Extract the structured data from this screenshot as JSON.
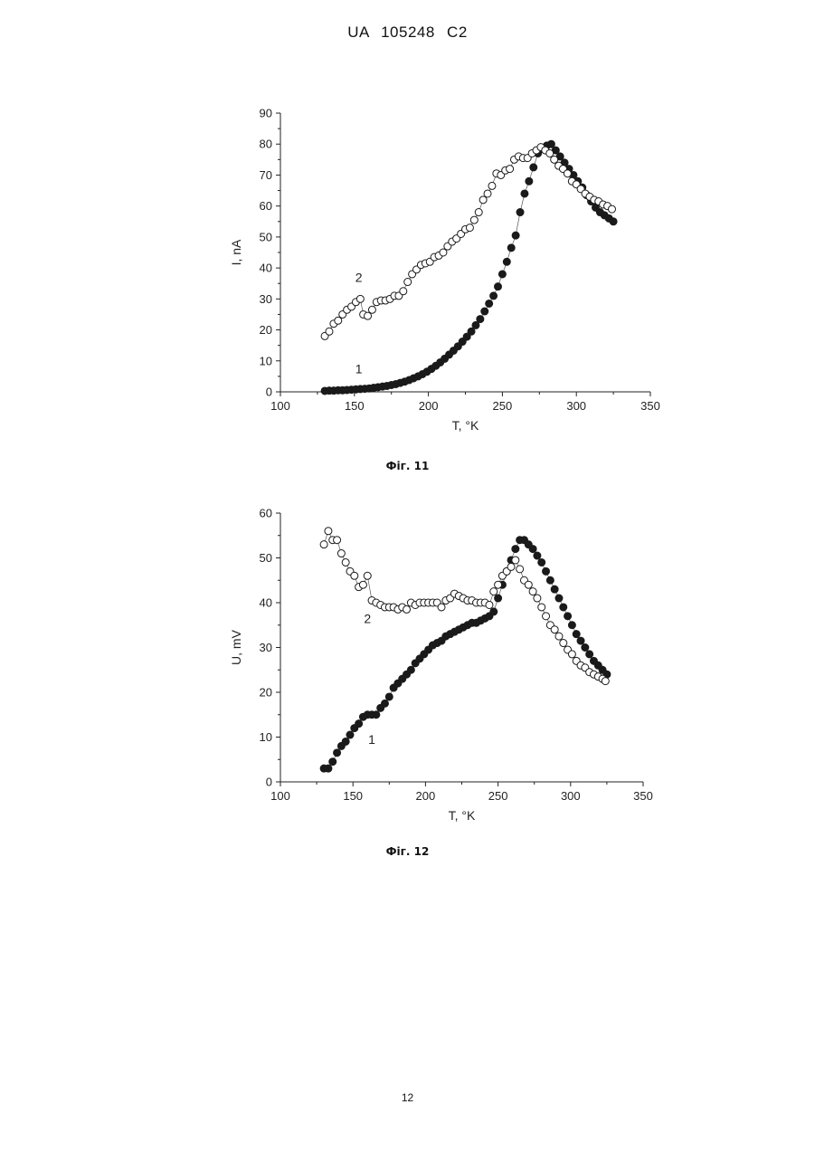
{
  "header": "UA   105248   C2",
  "page_number": "12",
  "chart_data": [
    {
      "type": "scatter",
      "caption": "Фіг. 11",
      "xlabel": "T, °K",
      "ylabel": "I, nA",
      "xlim": [
        100,
        350
      ],
      "ylim": [
        0,
        90
      ],
      "xticks": [
        100,
        150,
        200,
        250,
        300,
        350
      ],
      "yticks": [
        0,
        10,
        20,
        30,
        40,
        50,
        60,
        70,
        80,
        90
      ],
      "grid": false,
      "series": [
        {
          "label": "1",
          "marker": "filled",
          "connected": true,
          "label_pos": [
            153,
            6
          ],
          "points": [
            [
              130,
              0.3
            ],
            [
              133,
              0.4
            ],
            [
              136,
              0.4
            ],
            [
              139,
              0.5
            ],
            [
              142,
              0.5
            ],
            [
              145,
              0.6
            ],
            [
              148,
              0.7
            ],
            [
              151,
              0.8
            ],
            [
              154,
              0.9
            ],
            [
              157,
              1.0
            ],
            [
              160,
              1.1
            ],
            [
              163,
              1.3
            ],
            [
              166,
              1.5
            ],
            [
              169,
              1.7
            ],
            [
              172,
              1.9
            ],
            [
              175,
              2.2
            ],
            [
              178,
              2.5
            ],
            [
              181,
              2.9
            ],
            [
              184,
              3.3
            ],
            [
              187,
              3.8
            ],
            [
              190,
              4.4
            ],
            [
              193,
              5.0
            ],
            [
              196,
              5.7
            ],
            [
              199,
              6.5
            ],
            [
              202,
              7.4
            ],
            [
              205,
              8.4
            ],
            [
              208,
              9.5
            ],
            [
              211,
              10.7
            ],
            [
              214,
              12.0
            ],
            [
              217,
              13.3
            ],
            [
              220,
              14.7
            ],
            [
              223,
              16.2
            ],
            [
              226,
              17.8
            ],
            [
              229,
              19.5
            ],
            [
              232,
              21.5
            ],
            [
              235,
              23.5
            ],
            [
              238,
              26.0
            ],
            [
              241,
              28.5
            ],
            [
              244,
              31.0
            ],
            [
              247,
              34.0
            ],
            [
              250,
              38.0
            ],
            [
              253,
              42.0
            ],
            [
              256,
              46.5
            ],
            [
              259,
              50.5
            ],
            [
              262,
              58.0
            ],
            [
              265,
              64.0
            ],
            [
              268,
              68.0
            ],
            [
              271,
              72.5
            ],
            [
              274,
              77.0
            ],
            [
              277,
              78.5
            ],
            [
              280,
              79.5
            ],
            [
              283,
              80.0
            ],
            [
              286,
              78.0
            ],
            [
              289,
              76.0
            ],
            [
              292,
              74.0
            ],
            [
              295,
              72.0
            ],
            [
              298,
              70.0
            ],
            [
              301,
              68.0
            ],
            [
              304,
              66.0
            ],
            [
              307,
              63.5
            ],
            [
              310,
              61.5
            ],
            [
              313,
              59.5
            ],
            [
              316,
              58.0
            ],
            [
              319,
              57.0
            ],
            [
              322,
              56.0
            ],
            [
              325,
              55.0
            ]
          ]
        },
        {
          "label": "2",
          "marker": "open",
          "connected": true,
          "label_pos": [
            153,
            35.5
          ],
          "points": [
            [
              130,
              18
            ],
            [
              133,
              19.5
            ],
            [
              136,
              22
            ],
            [
              139,
              23
            ],
            [
              142,
              25
            ],
            [
              145,
              26.5
            ],
            [
              148,
              27.5
            ],
            [
              151,
              29
            ],
            [
              154,
              30
            ],
            [
              156,
              25
            ],
            [
              159,
              24.5
            ],
            [
              162,
              26.5
            ],
            [
              165,
              29
            ],
            [
              168,
              29.5
            ],
            [
              171,
              29.5
            ],
            [
              174,
              30
            ],
            [
              177,
              31
            ],
            [
              180,
              31
            ],
            [
              183,
              32.5
            ],
            [
              186,
              35.5
            ],
            [
              189,
              38
            ],
            [
              192,
              39.5
            ],
            [
              195,
              41
            ],
            [
              198,
              41.5
            ],
            [
              201,
              42
            ],
            [
              204,
              43.5
            ],
            [
              207,
              44
            ],
            [
              210,
              45
            ],
            [
              213,
              47
            ],
            [
              216,
              48.5
            ],
            [
              219,
              49.5
            ],
            [
              222,
              51
            ],
            [
              225,
              52.5
            ],
            [
              228,
              53
            ],
            [
              231,
              55.5
            ],
            [
              234,
              58
            ],
            [
              237,
              62
            ],
            [
              240,
              64
            ],
            [
              243,
              66.5
            ],
            [
              246,
              70.5
            ],
            [
              249,
              70
            ],
            [
              252,
              71.5
            ],
            [
              255,
              72
            ],
            [
              258,
              75
            ],
            [
              261,
              76
            ],
            [
              264,
              75.5
            ],
            [
              267,
              75.5
            ],
            [
              270,
              77
            ],
            [
              273,
              78
            ],
            [
              276,
              79
            ],
            [
              279,
              78
            ],
            [
              282,
              77
            ],
            [
              285,
              75
            ],
            [
              288,
              73
            ],
            [
              291,
              72
            ],
            [
              294,
              70.5
            ],
            [
              297,
              68
            ],
            [
              300,
              67
            ],
            [
              303,
              65.5
            ],
            [
              306,
              64
            ],
            [
              309,
              63
            ],
            [
              312,
              62
            ],
            [
              315,
              61.5
            ],
            [
              318,
              60.5
            ],
            [
              321,
              60
            ],
            [
              324,
              59
            ]
          ]
        }
      ]
    },
    {
      "type": "scatter",
      "caption": "Фіг. 12",
      "xlabel": "T, °K",
      "ylabel": "U, mV",
      "xlim": [
        100,
        350
      ],
      "ylim": [
        0,
        60
      ],
      "xticks": [
        100,
        150,
        200,
        250,
        300,
        350
      ],
      "yticks": [
        0,
        10,
        20,
        30,
        40,
        50,
        60
      ],
      "grid": false,
      "series": [
        {
          "label": "1",
          "marker": "filled",
          "connected": true,
          "label_pos": [
            163,
            8.5
          ],
          "points": [
            [
              130,
              3
            ],
            [
              133,
              3
            ],
            [
              136,
              4.5
            ],
            [
              139,
              6.5
            ],
            [
              142,
              8
            ],
            [
              145,
              9
            ],
            [
              148,
              10.5
            ],
            [
              151,
              12
            ],
            [
              154,
              13
            ],
            [
              157,
              14.5
            ],
            [
              160,
              15
            ],
            [
              163,
              15
            ],
            [
              166,
              15
            ],
            [
              169,
              16.5
            ],
            [
              172,
              17.5
            ],
            [
              175,
              19
            ],
            [
              178,
              21
            ],
            [
              181,
              22
            ],
            [
              184,
              23
            ],
            [
              187,
              24
            ],
            [
              190,
              25
            ],
            [
              193,
              26.5
            ],
            [
              196,
              27.5
            ],
            [
              199,
              28.5
            ],
            [
              202,
              29.5
            ],
            [
              205,
              30.5
            ],
            [
              208,
              31
            ],
            [
              211,
              31.5
            ],
            [
              214,
              32.5
            ],
            [
              217,
              33
            ],
            [
              220,
              33.5
            ],
            [
              223,
              34
            ],
            [
              226,
              34.5
            ],
            [
              229,
              35
            ],
            [
              232,
              35.5
            ],
            [
              235,
              35.5
            ],
            [
              238,
              36
            ],
            [
              241,
              36.5
            ],
            [
              244,
              37
            ],
            [
              247,
              38
            ],
            [
              250,
              41
            ],
            [
              253,
              44
            ],
            [
              256,
              47
            ],
            [
              259,
              49.5
            ],
            [
              262,
              52
            ],
            [
              265,
              54
            ],
            [
              268,
              54
            ],
            [
              271,
              53
            ],
            [
              274,
              52
            ],
            [
              277,
              50.5
            ],
            [
              280,
              49
            ],
            [
              283,
              47
            ],
            [
              286,
              45
            ],
            [
              289,
              43
            ],
            [
              292,
              41
            ],
            [
              295,
              39
            ],
            [
              298,
              37
            ],
            [
              301,
              35
            ],
            [
              304,
              33
            ],
            [
              307,
              31.5
            ],
            [
              310,
              30
            ],
            [
              313,
              28.5
            ],
            [
              316,
              27
            ],
            [
              319,
              26
            ],
            [
              322,
              25
            ],
            [
              325,
              24
            ]
          ]
        },
        {
          "label": "2",
          "marker": "open",
          "connected": true,
          "label_pos": [
            160,
            35.5
          ],
          "points": [
            [
              130,
              53
            ],
            [
              133,
              56
            ],
            [
              136,
              54
            ],
            [
              139,
              54
            ],
            [
              142,
              51
            ],
            [
              145,
              49
            ],
            [
              148,
              47
            ],
            [
              151,
              46
            ],
            [
              154,
              43.5
            ],
            [
              157,
              44
            ],
            [
              160,
              46
            ],
            [
              163,
              40.5
            ],
            [
              166,
              40
            ],
            [
              169,
              39.5
            ],
            [
              172,
              39
            ],
            [
              175,
              39
            ],
            [
              178,
              39
            ],
            [
              181,
              38.5
            ],
            [
              184,
              39
            ],
            [
              187,
              38.5
            ],
            [
              190,
              40
            ],
            [
              193,
              39.5
            ],
            [
              196,
              40
            ],
            [
              199,
              40
            ],
            [
              202,
              40
            ],
            [
              205,
              40
            ],
            [
              208,
              40
            ],
            [
              211,
              39
            ],
            [
              214,
              40.5
            ],
            [
              217,
              41
            ],
            [
              220,
              42
            ],
            [
              223,
              41.5
            ],
            [
              226,
              41
            ],
            [
              229,
              40.5
            ],
            [
              232,
              40.5
            ],
            [
              235,
              40
            ],
            [
              238,
              40
            ],
            [
              241,
              40
            ],
            [
              244,
              39.5
            ],
            [
              247,
              42.5
            ],
            [
              250,
              44
            ],
            [
              253,
              46
            ],
            [
              256,
              47
            ],
            [
              259,
              48
            ],
            [
              262,
              49.5
            ],
            [
              265,
              47.5
            ],
            [
              268,
              45
            ],
            [
              271,
              44
            ],
            [
              274,
              42.5
            ],
            [
              277,
              41
            ],
            [
              280,
              39
            ],
            [
              283,
              37
            ],
            [
              286,
              35
            ],
            [
              289,
              34
            ],
            [
              292,
              32.5
            ],
            [
              295,
              31
            ],
            [
              298,
              29.5
            ],
            [
              301,
              28.5
            ],
            [
              304,
              27
            ],
            [
              307,
              26
            ],
            [
              310,
              25.5
            ],
            [
              313,
              24.5
            ],
            [
              316,
              24
            ],
            [
              319,
              23.5
            ],
            [
              322,
              23
            ],
            [
              324,
              22.5
            ]
          ]
        }
      ]
    }
  ]
}
